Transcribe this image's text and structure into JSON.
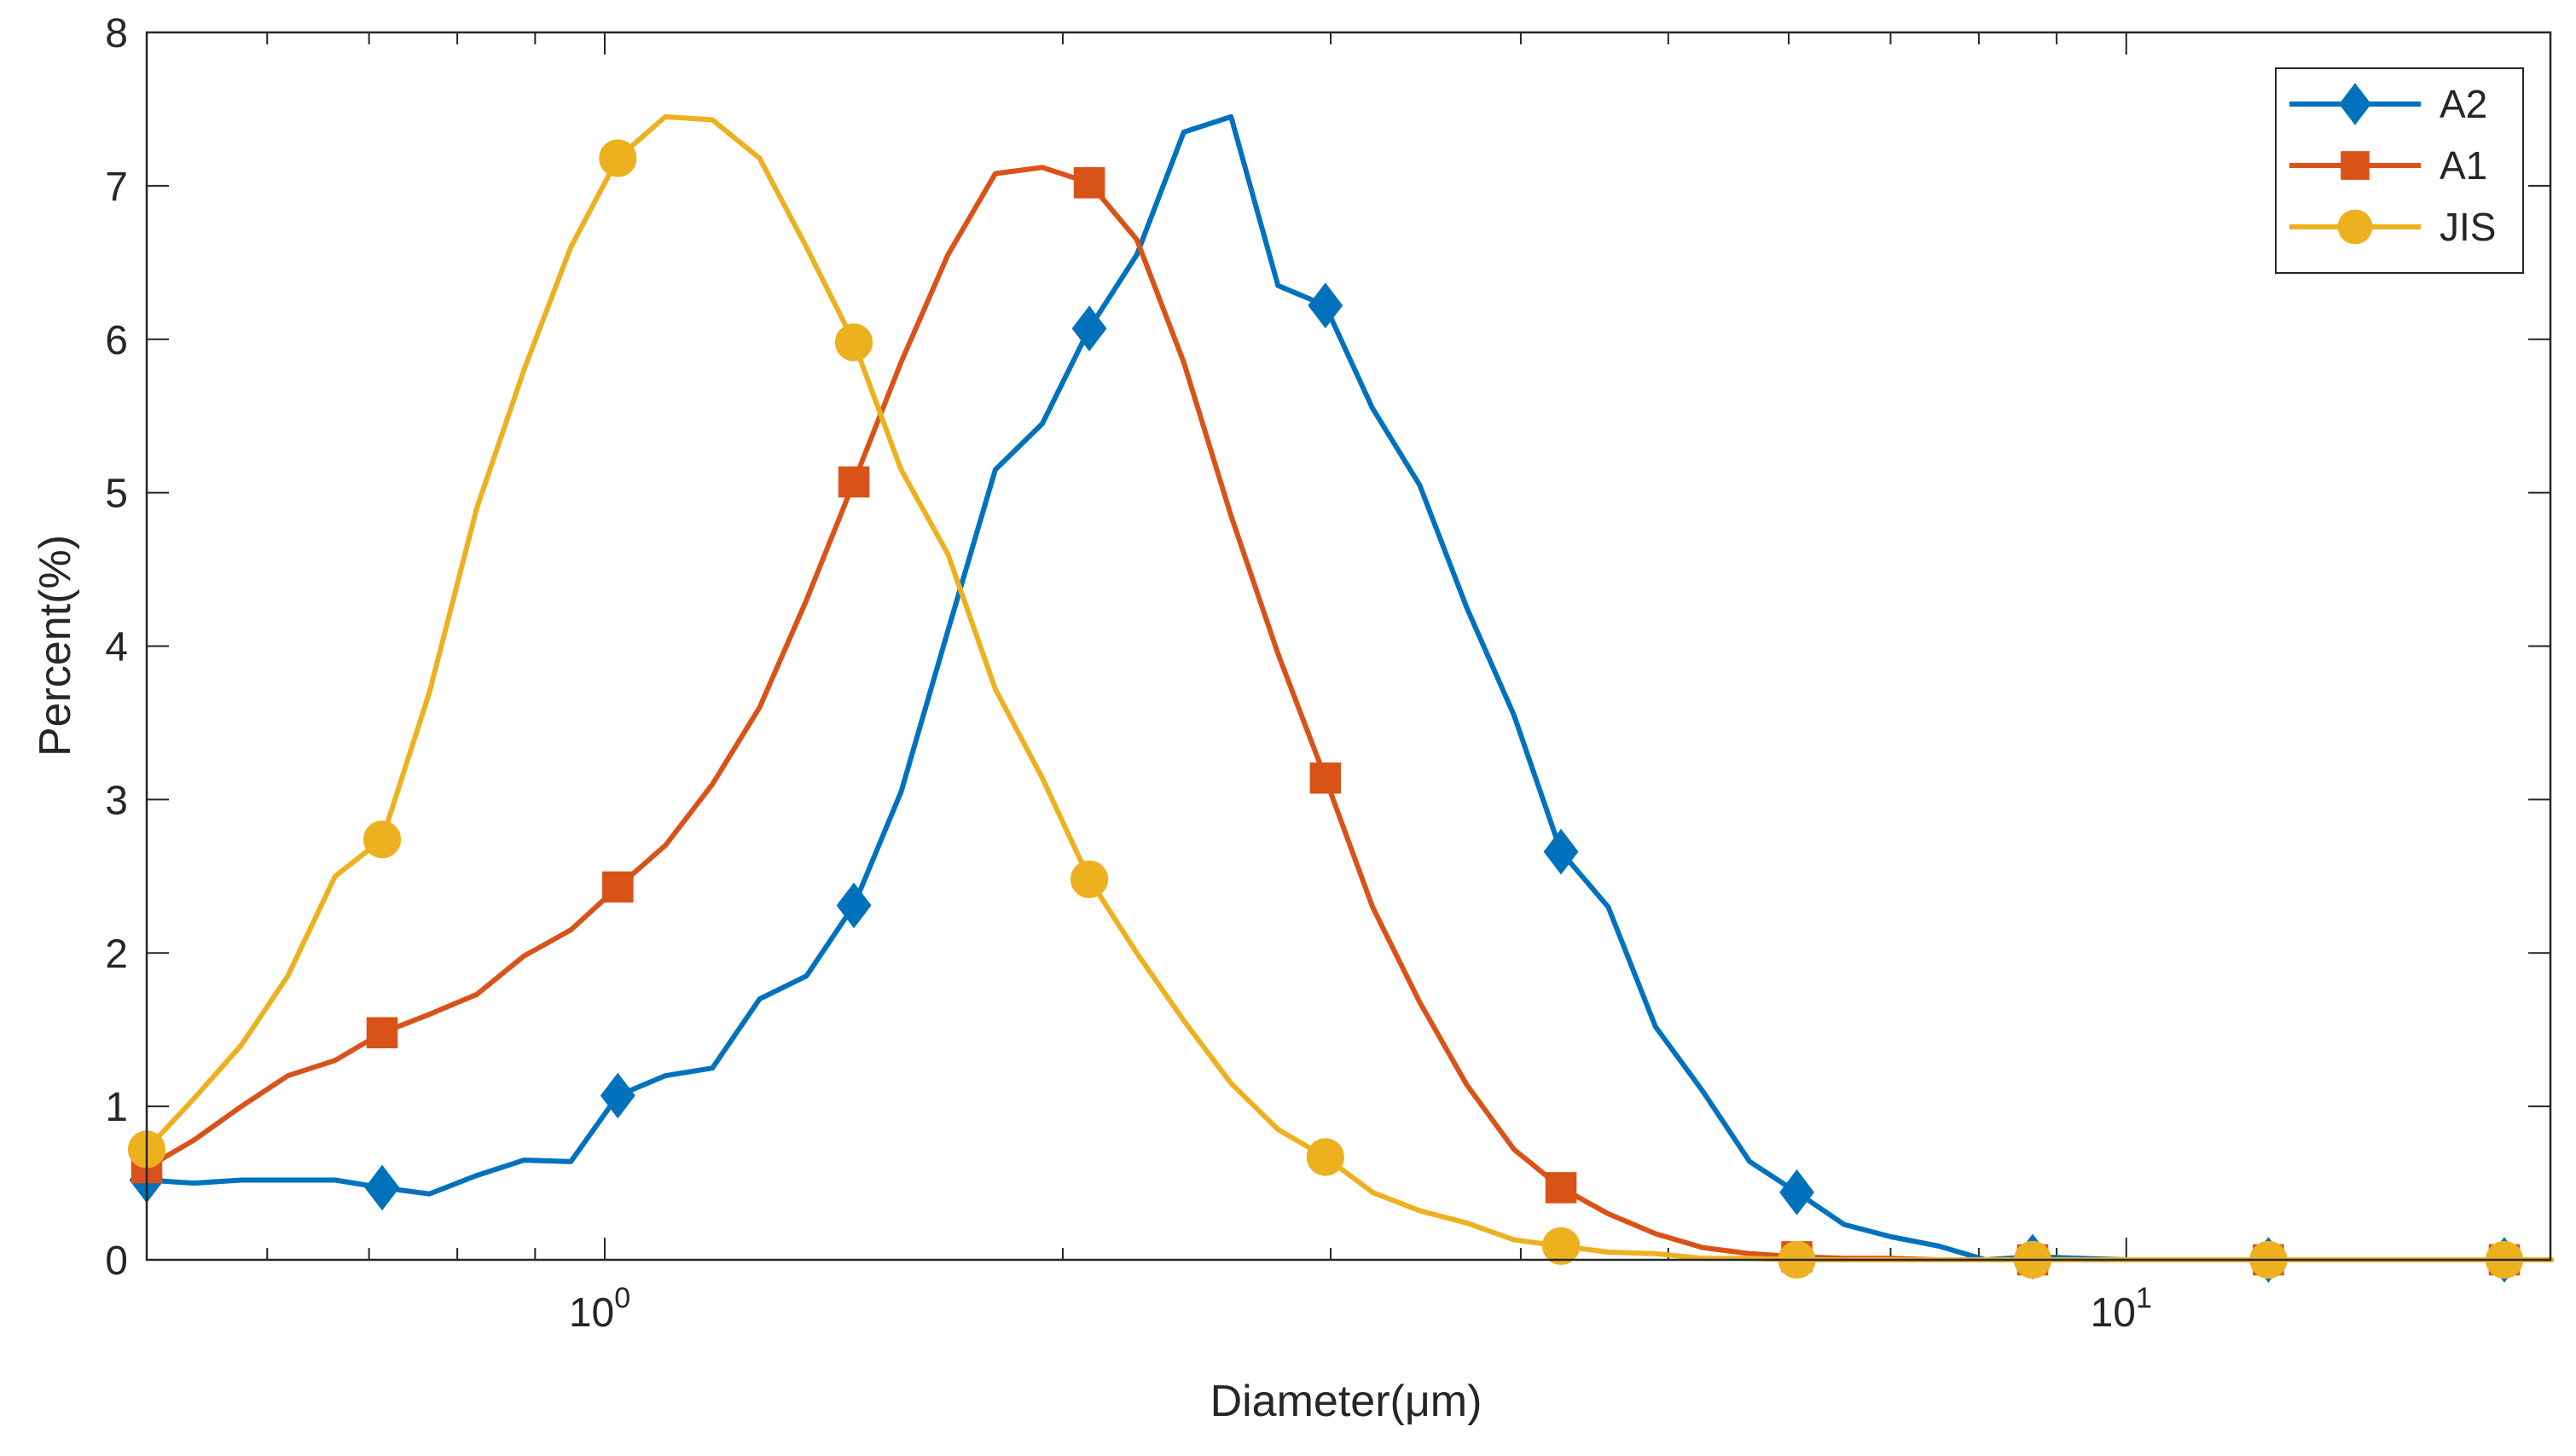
{
  "chart_data": {
    "type": "line",
    "title": "",
    "xlabel": "Diameter(μm)",
    "ylabel": "Percent(%)",
    "xscale": "log",
    "xlim": [
      0.5,
      19
    ],
    "ylim": [
      0,
      8
    ],
    "yticks": [
      0,
      1,
      2,
      3,
      4,
      5,
      6,
      7,
      8
    ],
    "xticks": [
      {
        "value": 1,
        "base": "10",
        "exp": "0"
      },
      {
        "value": 10,
        "base": "10",
        "exp": "1"
      }
    ],
    "grid": false,
    "legend_position": "top-right",
    "series": [
      {
        "name": "A2",
        "color": "#0072BD",
        "marker": "diamond",
        "x": [
          0.5,
          0.537,
          0.577,
          0.619,
          0.665,
          0.714,
          0.767,
          0.824,
          0.885,
          0.95,
          1.02,
          1.096,
          1.177,
          1.264,
          1.357,
          1.458,
          1.566,
          1.681,
          1.806,
          1.939,
          2.082,
          2.237,
          2.402,
          2.58,
          2.77,
          2.976,
          3.196,
          3.432,
          3.686,
          3.959,
          4.251,
          4.566,
          4.904,
          5.267,
          5.656,
          6.074,
          6.524,
          7.006,
          7.525,
          8.081,
          8.679,
          9.321,
          10.01,
          10.75,
          11.55,
          12.4,
          13.32,
          14.3,
          15.36,
          16.5,
          17.72,
          19.03
        ],
        "y": [
          0.52,
          0.5,
          0.52,
          0.52,
          0.52,
          0.47,
          0.43,
          0.55,
          0.65,
          0.64,
          1.07,
          1.2,
          1.25,
          1.7,
          1.85,
          2.31,
          3.05,
          4.1,
          5.15,
          5.45,
          6.07,
          6.55,
          7.35,
          7.45,
          6.35,
          6.22,
          5.55,
          5.05,
          4.25,
          3.55,
          2.66,
          2.3,
          1.52,
          1.1,
          0.64,
          0.44,
          0.23,
          0.15,
          0.09,
          0.0,
          0.02,
          0.01,
          0.0,
          0.0,
          0.0,
          0.0,
          0.0,
          0.0,
          0.0,
          0.0,
          0.0,
          0.0
        ],
        "marker_x": [
          0.5,
          0.714,
          1.02,
          1.458,
          2.082,
          2.976,
          4.251,
          6.074,
          8.679,
          12.4,
          17.72
        ],
        "marker_y": [
          0.52,
          0.47,
          1.07,
          2.31,
          6.07,
          6.22,
          2.66,
          0.44,
          0.02,
          0.0,
          0.0
        ]
      },
      {
        "name": "A1",
        "color": "#D95319",
        "marker": "square",
        "x": [
          0.5,
          0.537,
          0.577,
          0.619,
          0.665,
          0.714,
          0.767,
          0.824,
          0.885,
          0.95,
          1.02,
          1.096,
          1.177,
          1.264,
          1.357,
          1.458,
          1.566,
          1.681,
          1.806,
          1.939,
          2.082,
          2.237,
          2.402,
          2.58,
          2.77,
          2.976,
          3.196,
          3.432,
          3.686,
          3.959,
          4.251,
          4.566,
          4.904,
          5.267,
          5.656,
          6.074,
          6.524,
          7.006,
          7.525,
          8.081,
          8.679,
          9.321,
          10.01,
          10.75,
          11.55,
          12.4,
          13.32,
          14.3,
          15.36,
          16.5,
          17.72,
          19.03
        ],
        "y": [
          0.6,
          0.78,
          1.0,
          1.2,
          1.3,
          1.48,
          1.6,
          1.73,
          1.98,
          2.15,
          2.43,
          2.7,
          3.1,
          3.6,
          4.3,
          5.07,
          5.85,
          6.55,
          7.08,
          7.12,
          7.02,
          6.65,
          5.85,
          4.85,
          3.95,
          3.14,
          2.3,
          1.68,
          1.14,
          0.72,
          0.47,
          0.3,
          0.17,
          0.08,
          0.04,
          0.02,
          0.01,
          0.01,
          0.0,
          0.0,
          0.0,
          0.0,
          0.0,
          0.0,
          0.0,
          0.0,
          0.0,
          0.0,
          0.0,
          0.0,
          0.0,
          0.0
        ],
        "marker_x": [
          0.5,
          0.714,
          1.02,
          1.458,
          2.082,
          2.976,
          4.251,
          6.074,
          8.679,
          12.4,
          17.72
        ],
        "marker_y": [
          0.6,
          1.48,
          2.43,
          5.07,
          7.02,
          3.14,
          0.47,
          0.02,
          0.0,
          0.0,
          0.0
        ]
      },
      {
        "name": "JIS",
        "color": "#EDB120",
        "marker": "circle",
        "x": [
          0.5,
          0.537,
          0.577,
          0.619,
          0.665,
          0.714,
          0.767,
          0.824,
          0.885,
          0.95,
          1.02,
          1.096,
          1.177,
          1.264,
          1.357,
          1.458,
          1.566,
          1.681,
          1.806,
          1.939,
          2.082,
          2.237,
          2.402,
          2.58,
          2.77,
          2.976,
          3.196,
          3.432,
          3.686,
          3.959,
          4.251,
          4.566,
          4.904,
          5.267,
          5.656,
          6.074,
          6.524,
          7.006,
          7.525,
          8.081,
          8.679,
          9.321,
          10.01,
          10.75,
          11.55,
          12.4,
          13.32,
          14.3,
          15.36,
          16.5,
          17.72,
          19.03
        ],
        "y": [
          0.72,
          1.05,
          1.4,
          1.85,
          2.5,
          2.74,
          3.7,
          4.9,
          5.8,
          6.6,
          7.18,
          7.45,
          7.43,
          7.18,
          6.6,
          5.98,
          5.15,
          4.6,
          3.72,
          3.14,
          2.48,
          2.0,
          1.56,
          1.15,
          0.85,
          0.67,
          0.44,
          0.32,
          0.24,
          0.13,
          0.09,
          0.05,
          0.04,
          0.01,
          0.01,
          0.0,
          0.0,
          0.0,
          0.0,
          0.0,
          0.0,
          0.0,
          0.0,
          0.0,
          0.0,
          0.0,
          0.0,
          0.0,
          0.0,
          0.0,
          0.0,
          0.0
        ],
        "marker_x": [
          0.5,
          0.714,
          1.02,
          1.458,
          2.082,
          2.976,
          4.251,
          6.074,
          8.679,
          12.4,
          17.72
        ],
        "marker_y": [
          0.72,
          2.74,
          7.18,
          5.98,
          2.48,
          0.67,
          0.09,
          0.0,
          0.0,
          0.0,
          0.0
        ]
      }
    ]
  }
}
